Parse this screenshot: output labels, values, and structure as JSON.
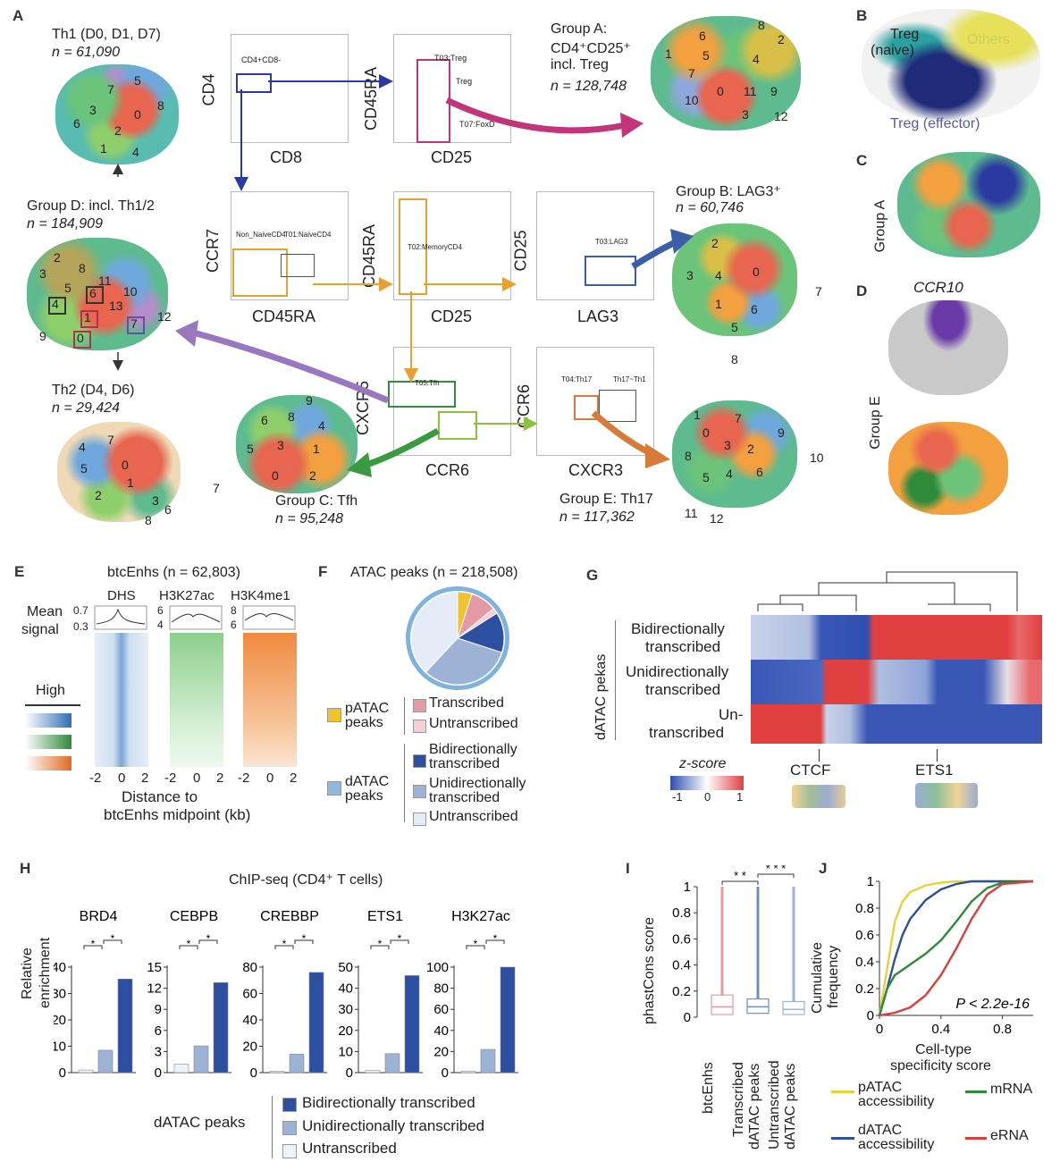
{
  "panel_labels": {
    "a": "A",
    "b": "B",
    "c": "C",
    "d": "D",
    "e": "E",
    "f": "F",
    "g": "G",
    "h": "H",
    "i": "I",
    "j": "J"
  },
  "panelA": {
    "th1_title": "Th1 (D0, D1, D7)",
    "th1_n": "n = 61,090",
    "groupD_title": "Group D: incl. Th1/2",
    "groupD_n": "n = 184,909",
    "th2_title": "Th2 (D4, D6)",
    "th2_n": "n = 29,424",
    "groupC_title": "Group C: Tfh",
    "groupC_n": "n = 95,248",
    "groupA_title1": "Group A:",
    "groupA_title2": "CD4⁺CD25⁺",
    "groupA_title3": "incl. Treg",
    "groupA_n": "n = 128,748",
    "groupB_title": "Group B: LAG3⁺",
    "groupB_n": "n = 60,746",
    "groupE_title": "Group E: Th17",
    "groupE_n": "n = 117,362",
    "facs": {
      "cd4": "CD4",
      "cd8": "CD8",
      "cd45ra": "CD45RA",
      "cd25": "CD25",
      "ccr7": "CCR7",
      "lag3": "LAG3",
      "cxcr5": "CXCR5",
      "ccr6": "CCR6",
      "cxcr3": "CXCR3"
    },
    "gate_labels": {
      "g1": "CD4+CD8-",
      "g2": "T03:Treg",
      "g3": "Treg",
      "g4": "T07:FoxD",
      "g5": "Non_NaiveCD4",
      "g6": "T01:NaiveCD4",
      "g7": "T02:MemoryCD4",
      "g8": "T03:LAG3",
      "g9": "T05:Tfh",
      "g10": "T04:Th17",
      "g11": "Th17~Th1"
    },
    "th1_clusters": [
      "7",
      "5",
      "3",
      "0",
      "8",
      "6",
      "2",
      "1",
      "4"
    ],
    "groupD_clusters": [
      "2",
      "3",
      "8",
      "5",
      "11",
      "10",
      "4",
      "6",
      "13",
      "1",
      "7",
      "12",
      "9",
      "0"
    ],
    "th2_clusters": [
      "7",
      "4",
      "0",
      "5",
      "1",
      "2",
      "3",
      "6",
      "8"
    ],
    "groupC_clusters": [
      "9",
      "6",
      "8",
      "4",
      "5",
      "3",
      "1",
      "0",
      "2",
      "7"
    ],
    "groupA_clusters": [
      "8",
      "6",
      "2",
      "1",
      "5",
      "4",
      "7",
      "0",
      "11",
      "9",
      "10",
      "3",
      "12"
    ],
    "groupB_clusters": [
      "2",
      "3",
      "4",
      "0",
      "1",
      "6",
      "5",
      "7",
      "8"
    ],
    "groupE_clusters": [
      "1",
      "7",
      "0",
      "3",
      "2",
      "9",
      "8",
      "5",
      "4",
      "6",
      "10",
      "11",
      "12"
    ]
  },
  "panelB": {
    "treg_naive": "Treg\n(naive)",
    "treg_line1": "Treg",
    "treg_line2": "(naive)",
    "others": "Others",
    "treg_effector": "Treg (effector)"
  },
  "panelC": {
    "label": "Group A"
  },
  "panelD": {
    "title": "CCR10",
    "label": "Group E"
  },
  "panelE": {
    "title": "btcEnhs (n = 62,803)",
    "col1": "DHS",
    "col2": "H3K27ac",
    "col3": "H3K4me1",
    "mean_signal": "Mean",
    "signal": "signal",
    "mean_ticks": {
      "a": "0.7",
      "b": "0.3",
      "c": "6",
      "d": "4",
      "e": "8",
      "f": "6"
    },
    "high": "High",
    "x_ticks": [
      "-2",
      "0",
      "2"
    ],
    "xlabel1": "Distance to",
    "xlabel2": "btcEnhs midpoint (kb)",
    "colors": {
      "dhs": "#2e6db4",
      "h3k27ac": "#2f8a3a",
      "h3k4me1": "#e06a20"
    }
  },
  "panelF": {
    "title": "ATAC peaks (n = 218,508)",
    "pATAC": "pATAC",
    "peaks": "peaks",
    "dATAC": "dATAC",
    "legend": [
      "Transcribed",
      "Untranscribed",
      "Bidirectionally",
      "transcribed",
      "Unidirectionally",
      "transcribed",
      "Untranscribed"
    ],
    "slices": [
      {
        "label": "pATAC",
        "value": 0.05,
        "color": "#f2c12e"
      },
      {
        "label": "Transcribed",
        "value": 0.09,
        "color": "#e39aa4"
      },
      {
        "label": "Untranscribed",
        "value": 0.02,
        "color": "#f4cfd3"
      },
      {
        "label": "Bidirectionally transcribed",
        "value": 0.14,
        "color": "#2d4fa1"
      },
      {
        "label": "Unidirectionally transcribed",
        "value": 0.32,
        "color": "#9db3d6"
      },
      {
        "label": "Untranscribed",
        "value": 0.38,
        "color": "#e4ecf7"
      }
    ]
  },
  "panelG": {
    "row_group": "dATAC pekas",
    "rows": [
      [
        "Bidirectionally",
        "transcribed"
      ],
      [
        "Unidirectionally",
        "transcribed"
      ],
      [
        "Un-",
        "transcribed"
      ]
    ],
    "zscore": "z-score",
    "ticks": [
      "-1",
      "0",
      "1"
    ],
    "motif1": "CTCF",
    "motif2": "ETS1"
  },
  "panelH": {
    "title": "ChIP-seq (CD4⁺ T cells)",
    "ylabel1": "Relative",
    "ylabel2": "enrichment",
    "sig": "*",
    "legend_title": "dATAC peaks",
    "legend": [
      "Bidirectionally transcribed",
      "Unidirectionally transcribed",
      "Untranscribed"
    ],
    "colors": [
      "#eef2f9",
      "#9db3d6",
      "#2d4fa1"
    ]
  },
  "panelI": {
    "ylabel": "phastCons score",
    "yticks": [
      "0",
      "0.2",
      "0.4",
      "0.6",
      "0.8",
      "1"
    ],
    "sig1": "* *",
    "sig2": "* * *",
    "categories": [
      "btcEnhs",
      "Transcribed dATAC peaks",
      "Untranscribed dATAC peaks"
    ],
    "xlab1": "btcEnhs",
    "xlab2a": "Transcribed",
    "xlab2b": "dATAC peaks",
    "xlab3a": "Untranscribed",
    "xlab3b": "dATAC peaks"
  },
  "panelJ": {
    "ylabel1": "Cumulative",
    "ylabel2": "frequency",
    "xlabel1": "Cell-type",
    "xlabel2": "specificity score",
    "yticks": [
      "0",
      "0.2",
      "0.4",
      "0.6",
      "0.8",
      "1"
    ],
    "xticks": [
      "0",
      "0.4",
      "0.8"
    ],
    "pvalue": "P < 2.2e-16",
    "legend": {
      "patac1": "pATAC",
      "patac2": "accessibility",
      "datac1": "dATAC",
      "datac2": "accessibility",
      "mrna": "mRNA",
      "erna": "eRNA"
    }
  },
  "chart_data": [
    {
      "type": "bar",
      "title": "BRD4",
      "categories": [
        "Untranscribed",
        "Unidirectionally transcribed",
        "Bidirectionally transcribed"
      ],
      "values": [
        1,
        8.5,
        35.5
      ],
      "ylim": [
        0,
        40
      ],
      "yticks": [
        0,
        10,
        20,
        30,
        40
      ]
    },
    {
      "type": "bar",
      "title": "CEBPB",
      "categories": [
        "Untranscribed",
        "Unidirectionally transcribed",
        "Bidirectionally transcribed"
      ],
      "values": [
        1.2,
        3.8,
        12.8
      ],
      "ylim": [
        0,
        15
      ],
      "yticks": [
        0,
        3,
        6,
        9,
        12,
        15
      ]
    },
    {
      "type": "bar",
      "title": "CREBBP",
      "categories": [
        "Untranscribed",
        "Unidirectionally transcribed",
        "Bidirectionally transcribed"
      ],
      "values": [
        1,
        14,
        76
      ],
      "ylim": [
        0,
        80
      ],
      "yticks": [
        0,
        20,
        40,
        60,
        80
      ]
    },
    {
      "type": "bar",
      "title": "ETS1",
      "categories": [
        "Untranscribed",
        "Unidirectionally transcribed",
        "Bidirectionally transcribed"
      ],
      "values": [
        1,
        9,
        46
      ],
      "ylim": [
        0,
        50
      ],
      "yticks": [
        0,
        10,
        20,
        30,
        40,
        50
      ]
    },
    {
      "type": "bar",
      "title": "H3K27ac",
      "categories": [
        "Untranscribed",
        "Unidirectionally transcribed",
        "Bidirectionally transcribed"
      ],
      "values": [
        1.5,
        22,
        100
      ],
      "ylim": [
        0,
        100
      ],
      "yticks": [
        0,
        20,
        40,
        60,
        80,
        100
      ]
    },
    {
      "type": "box",
      "title": "phastCons score",
      "categories": [
        "btcEnhs",
        "Transcribed dATAC peaks",
        "Untranscribed dATAC peaks"
      ],
      "boxes": [
        {
          "q1": 0.02,
          "median": 0.08,
          "q3": 0.17,
          "whisker_high": 1,
          "color": "#e39aa4"
        },
        {
          "q1": 0.03,
          "median": 0.08,
          "q3": 0.14,
          "whisker_high": 1,
          "color": "#6f8fbf"
        },
        {
          "q1": 0.02,
          "median": 0.06,
          "q3": 0.12,
          "whisker_high": 1,
          "color": "#9db3d6"
        }
      ],
      "ylim": [
        0,
        1
      ]
    },
    {
      "type": "line",
      "title": "Cumulative frequency",
      "xlim": [
        0,
        1
      ],
      "ylim": [
        0,
        1
      ],
      "series": [
        {
          "name": "pATAC accessibility",
          "color": "#e8d23a",
          "x": [
            0,
            0.05,
            0.1,
            0.15,
            0.2,
            0.3,
            0.4,
            0.5,
            1
          ],
          "y": [
            0,
            0.35,
            0.7,
            0.85,
            0.92,
            0.97,
            0.99,
            1,
            1
          ]
        },
        {
          "name": "dATAC accessibility",
          "color": "#2d4fa1",
          "x": [
            0,
            0.05,
            0.1,
            0.15,
            0.2,
            0.3,
            0.4,
            0.5,
            0.6,
            1
          ],
          "y": [
            0,
            0.2,
            0.42,
            0.6,
            0.72,
            0.86,
            0.94,
            0.98,
            1,
            1
          ]
        },
        {
          "name": "mRNA",
          "color": "#2f8a3a",
          "x": [
            0,
            0.05,
            0.1,
            0.2,
            0.3,
            0.4,
            0.5,
            0.6,
            0.7,
            0.8,
            1
          ],
          "y": [
            0,
            0.2,
            0.3,
            0.38,
            0.46,
            0.56,
            0.7,
            0.85,
            0.95,
            0.99,
            1
          ]
        },
        {
          "name": "eRNA",
          "color": "#d9403a",
          "x": [
            0,
            0.1,
            0.2,
            0.3,
            0.4,
            0.5,
            0.6,
            0.7,
            0.8,
            1
          ],
          "y": [
            0,
            0.02,
            0.06,
            0.15,
            0.3,
            0.5,
            0.72,
            0.9,
            0.98,
            1
          ]
        }
      ]
    }
  ]
}
